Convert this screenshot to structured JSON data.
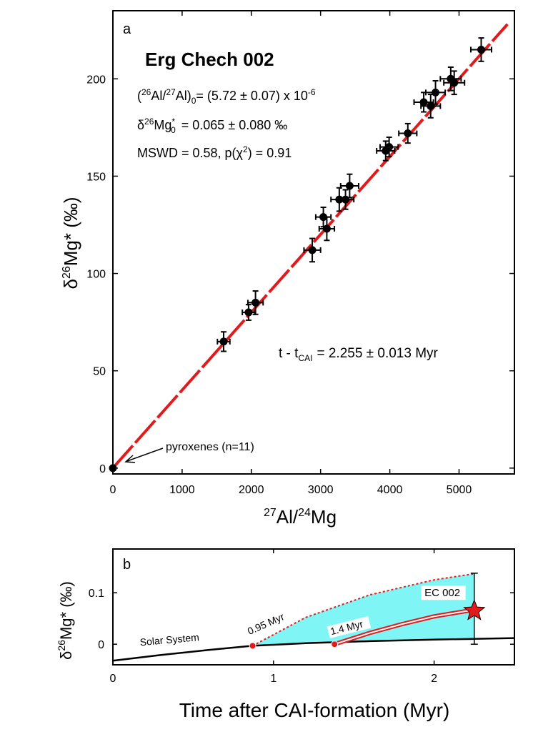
{
  "chart_data": [
    {
      "type": "scatter",
      "panel_label": "a",
      "title": "Erg Chech 002",
      "xlabel_sup1": "27",
      "xlabel_mid": "Al/",
      "xlabel_sup2": "24",
      "xlabel_end": "Mg",
      "ylabel_pre": "δ",
      "ylabel_sup": "26",
      "ylabel_end": "Mg* (‰)",
      "xlim": [
        0,
        5800
      ],
      "ylim": [
        -3,
        235
      ],
      "xticks": [
        0,
        1000,
        2000,
        3000,
        4000,
        5000
      ],
      "yticks": [
        0,
        50,
        100,
        150,
        200
      ],
      "grid": false,
      "annotations": {
        "ratio_open": "(",
        "ratio_sup1": "26",
        "ratio_mid": "Al/",
        "ratio_sup2": "27",
        "ratio_close": "Al)",
        "ratio_sub": "0",
        "ratio_value": "= (5.72 ± 0.07) x 10",
        "ratio_exp": "-6",
        "intercept_pre": "δ",
        "intercept_sup": "26",
        "intercept_mg": "Mg",
        "intercept_star": "*",
        "intercept_sub": "0",
        "intercept_value": "= 0.065 ± 0.080 ‰",
        "mswd": "MSWD = 0.58, p(χ",
        "mswd_sup": "2",
        "mswd_end": ") = 0.91",
        "age_pre": "t - t",
        "age_sub": "CAI",
        "age_value": "= 2.255 ± 0.013 Myr",
        "pyroxenes": "pyroxenes (n=11)"
      },
      "regression": {
        "slope": 0.04,
        "intercept": 0.065,
        "x_range": [
          0,
          5700
        ],
        "color": "#e31a1c"
      },
      "points": [
        {
          "x": 0,
          "y": 0,
          "xerr": 0,
          "yerr": 0
        },
        {
          "x": 1600,
          "y": 65,
          "xerr": 90,
          "yerr": 5
        },
        {
          "x": 1960,
          "y": 80,
          "xerr": 90,
          "yerr": 4
        },
        {
          "x": 2060,
          "y": 85,
          "xerr": 110,
          "yerr": 6
        },
        {
          "x": 2880,
          "y": 112,
          "xerr": 120,
          "yerr": 6
        },
        {
          "x": 3040,
          "y": 129,
          "xerr": 110,
          "yerr": 5
        },
        {
          "x": 3090,
          "y": 123,
          "xerr": 110,
          "yerr": 6
        },
        {
          "x": 3270,
          "y": 138,
          "xerr": 120,
          "yerr": 6
        },
        {
          "x": 3360,
          "y": 138,
          "xerr": 120,
          "yerr": 5
        },
        {
          "x": 3420,
          "y": 145,
          "xerr": 130,
          "yerr": 6
        },
        {
          "x": 3940,
          "y": 163,
          "xerr": 130,
          "yerr": 5
        },
        {
          "x": 3990,
          "y": 165,
          "xerr": 130,
          "yerr": 5
        },
        {
          "x": 4260,
          "y": 172,
          "xerr": 130,
          "yerr": 5
        },
        {
          "x": 4490,
          "y": 188,
          "xerr": 140,
          "yerr": 5
        },
        {
          "x": 4590,
          "y": 186,
          "xerr": 140,
          "yerr": 6
        },
        {
          "x": 4660,
          "y": 193,
          "xerr": 140,
          "yerr": 6
        },
        {
          "x": 4880,
          "y": 200,
          "xerr": 150,
          "yerr": 6
        },
        {
          "x": 4930,
          "y": 198,
          "xerr": 150,
          "yerr": 6
        },
        {
          "x": 5320,
          "y": 215,
          "xerr": 150,
          "yerr": 6
        }
      ]
    },
    {
      "type": "line",
      "panel_label": "b",
      "xlabel": "Time after CAI-formation (Myr)",
      "ylabel_pre": "δ",
      "ylabel_sup": "26",
      "ylabel_end": "Mg* (‰)",
      "xlim": [
        0,
        2.5
      ],
      "ylim": [
        -0.04,
        0.185
      ],
      "xticks": [
        0,
        1,
        2
      ],
      "yticks": [
        0,
        0.1
      ],
      "ytick_labels": [
        "0",
        "0.1"
      ],
      "grid": false,
      "series": [
        {
          "name": "Solar System",
          "color": "#000000",
          "x": [
            0,
            0.3,
            0.6,
            0.87,
            1.2,
            1.6,
            2.0,
            2.5
          ],
          "y": [
            -0.032,
            -0.021,
            -0.011,
            -0.003,
            0.002,
            0.006,
            0.009,
            0.012
          ]
        },
        {
          "name": "0.95 Myr",
          "color": "#e31a1c",
          "style": "dotted",
          "x": [
            0.87,
            1.2,
            1.6,
            2.0,
            2.25
          ],
          "y": [
            -0.003,
            0.052,
            0.096,
            0.125,
            0.137
          ]
        },
        {
          "name": "1.4 Myr",
          "color": "#e31a1c",
          "x": [
            1.38,
            1.6,
            1.8,
            2.0,
            2.25
          ],
          "y": [
            0.0,
            0.022,
            0.039,
            0.054,
            0.067
          ]
        }
      ],
      "fill_color": "#7ff5f5",
      "marker_dots": [
        {
          "x": 0.87,
          "y": -0.003
        },
        {
          "x": 1.38,
          "y": 0.0
        }
      ],
      "ec002": {
        "label": "EC 002",
        "x": 2.25,
        "y": 0.065,
        "yerr_low": 0.065,
        "yerr_high": 0.073,
        "color": "#e31a1c"
      }
    }
  ]
}
